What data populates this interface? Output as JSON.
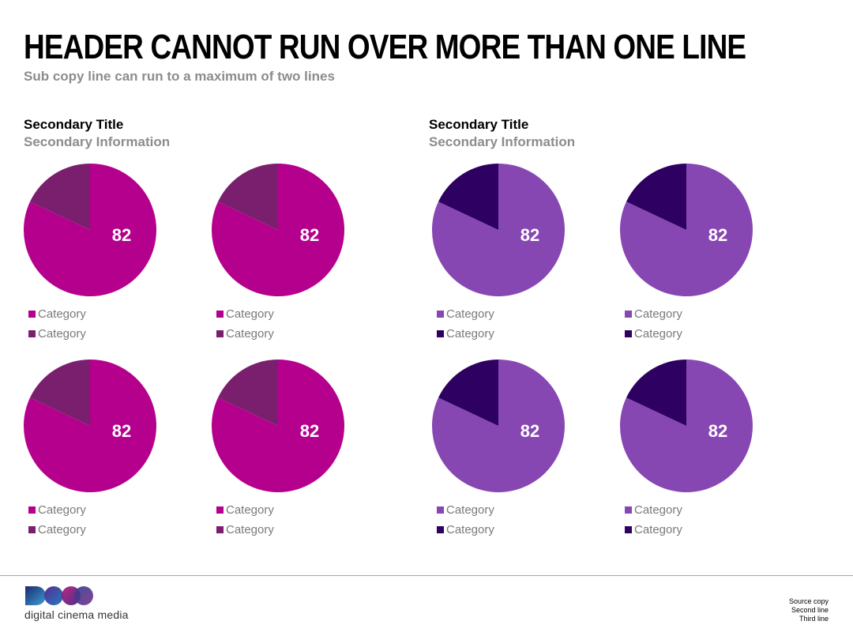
{
  "header": {
    "title": "HEADER CANNOT RUN OVER MORE THAN ONE LINE",
    "sub_copy": "Sub copy line can run to a maximum of two lines"
  },
  "sections": [
    {
      "title": "Secondary Title",
      "info": "Secondary Information",
      "colors": {
        "main": "#b5008e",
        "rest": "#7a1f6e"
      }
    },
    {
      "title": "Secondary Title",
      "info": "Secondary Information",
      "colors": {
        "main": "#8747b3",
        "rest": "#2e0061"
      }
    }
  ],
  "chart_data": [
    {
      "type": "pie",
      "group": 1,
      "label": "82",
      "values": [
        82,
        18
      ],
      "legend": [
        "Category",
        "Category"
      ]
    },
    {
      "type": "pie",
      "group": 1,
      "label": "82",
      "values": [
        82,
        18
      ],
      "legend": [
        "Category",
        "Category"
      ]
    },
    {
      "type": "pie",
      "group": 1,
      "label": "82",
      "values": [
        82,
        18
      ],
      "legend": [
        "Category",
        "Category"
      ]
    },
    {
      "type": "pie",
      "group": 1,
      "label": "82",
      "values": [
        82,
        18
      ],
      "legend": [
        "Category",
        "Category"
      ]
    },
    {
      "type": "pie",
      "group": 2,
      "label": "82",
      "values": [
        82,
        18
      ],
      "legend": [
        "Category",
        "Category"
      ]
    },
    {
      "type": "pie",
      "group": 2,
      "label": "82",
      "values": [
        82,
        18
      ],
      "legend": [
        "Category",
        "Category"
      ]
    },
    {
      "type": "pie",
      "group": 2,
      "label": "82",
      "values": [
        82,
        18
      ],
      "legend": [
        "Category",
        "Category"
      ]
    },
    {
      "type": "pie",
      "group": 2,
      "label": "82",
      "values": [
        82,
        18
      ],
      "legend": [
        "Category",
        "Category"
      ]
    }
  ],
  "footer": {
    "logo_text": "digital cinema media",
    "source_lines": [
      "Source copy",
      "Second line",
      "Third line"
    ]
  }
}
